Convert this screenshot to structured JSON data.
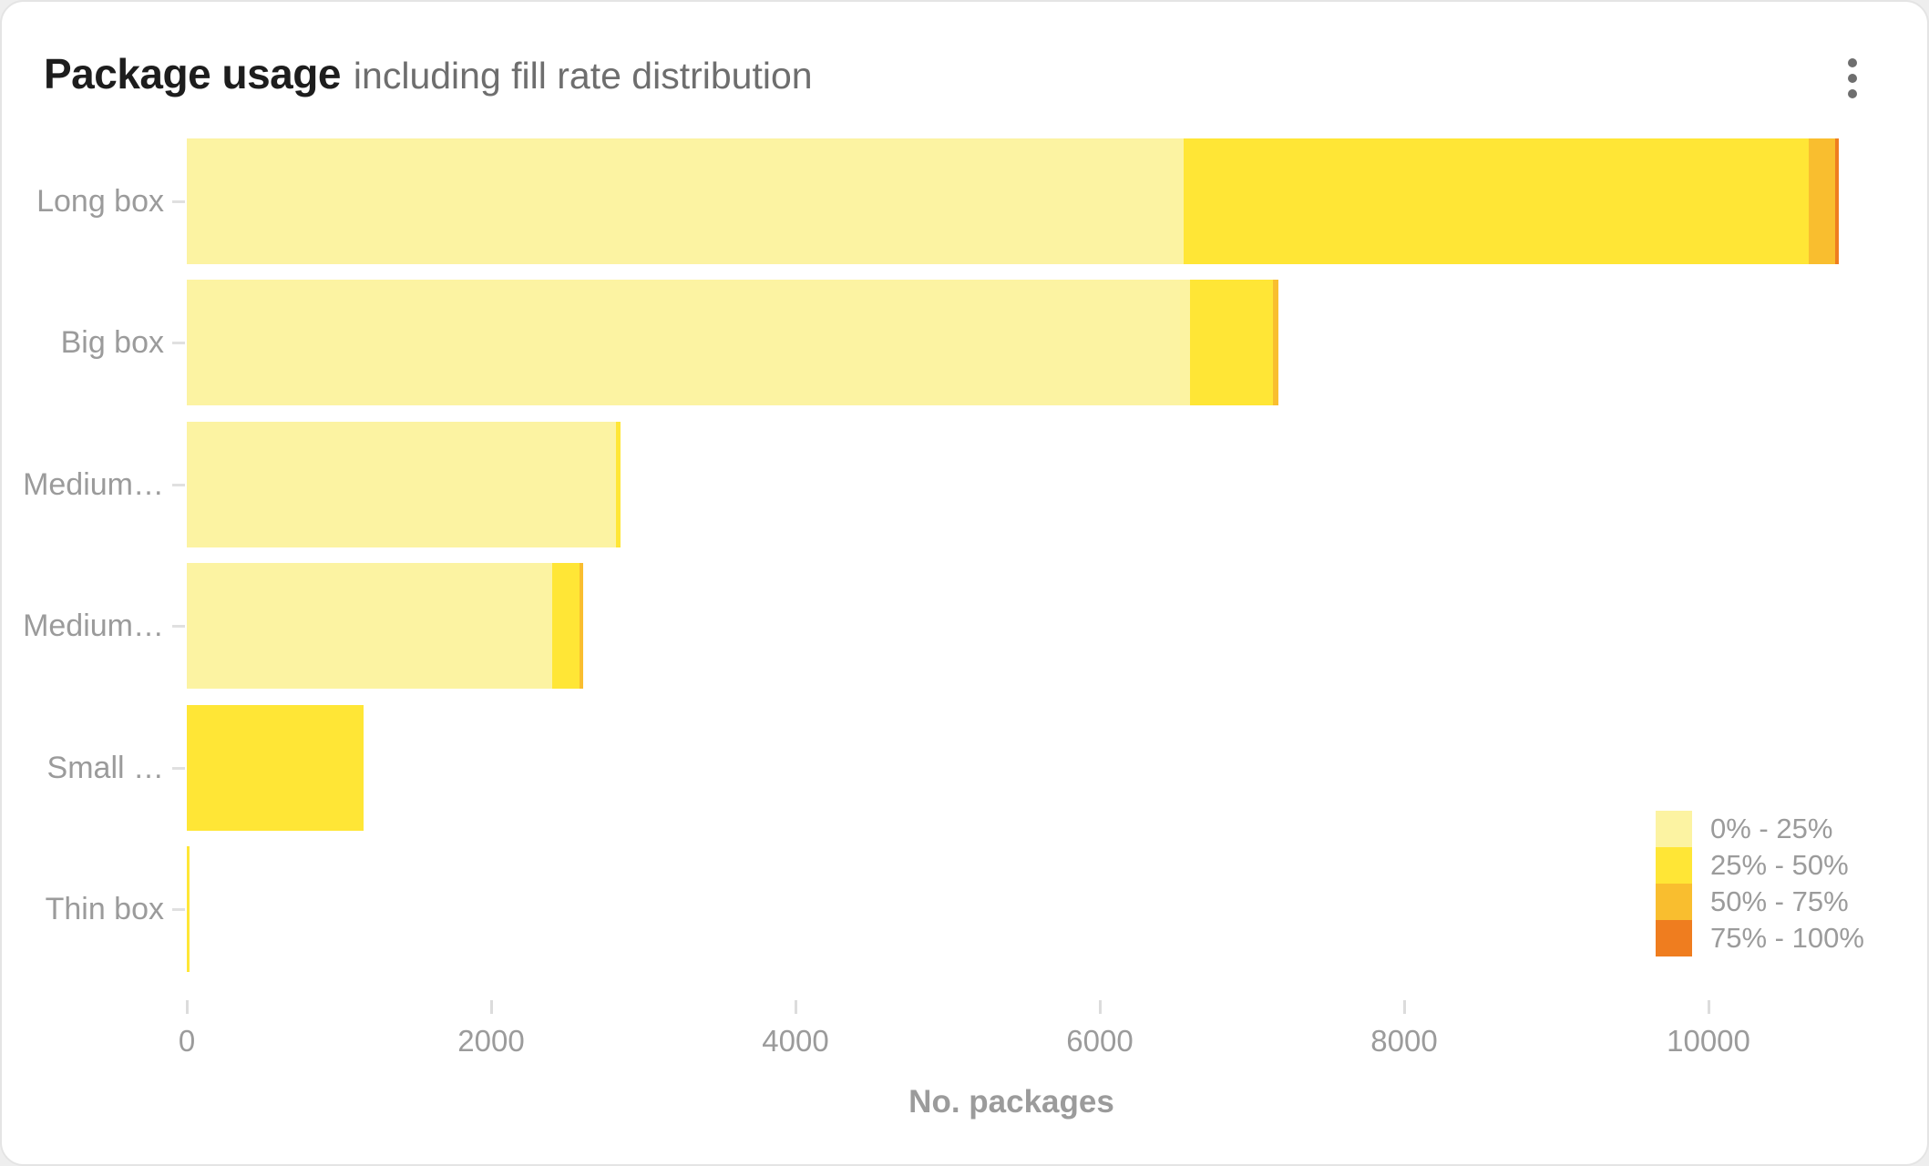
{
  "card": {
    "title": "Package usage",
    "subtitle": "including fill rate distribution",
    "menu_icon": "kebab-menu-icon"
  },
  "chart_data": {
    "type": "bar",
    "orientation": "horizontal",
    "stacked": true,
    "title": "Package usage",
    "subtitle": "including fill rate distribution",
    "categories": [
      "Long box",
      "Big box",
      "Medium…",
      "Medium…",
      "Small …",
      "Thin box"
    ],
    "series": [
      {
        "name": "0% - 25%",
        "color": "#FCF3A2",
        "values": [
          6550,
          6590,
          2820,
          2400,
          0,
          0
        ]
      },
      {
        "name": "25% - 50%",
        "color": "#FFE636",
        "values": [
          4110,
          545,
          30,
          180,
          1160,
          20
        ]
      },
      {
        "name": "50% - 75%",
        "color": "#F9BE2F",
        "values": [
          170,
          40,
          0,
          25,
          0,
          0
        ]
      },
      {
        "name": "75% - 100%",
        "color": "#EF7D1F",
        "values": [
          25,
          0,
          0,
          0,
          0,
          0
        ]
      }
    ],
    "xlabel": "No. packages",
    "x_ticks": [
      "0",
      "2000",
      "4000",
      "6000",
      "8000",
      "10000"
    ],
    "x_tick_values": [
      0,
      2000,
      4000,
      6000,
      8000,
      10000
    ],
    "xlim": [
      0,
      11460
    ],
    "grid": false,
    "legend_position": "bottom-right",
    "legend_items": [
      "0% - 25%",
      "25% - 50%",
      "50% - 75%",
      "75% - 100%"
    ]
  }
}
